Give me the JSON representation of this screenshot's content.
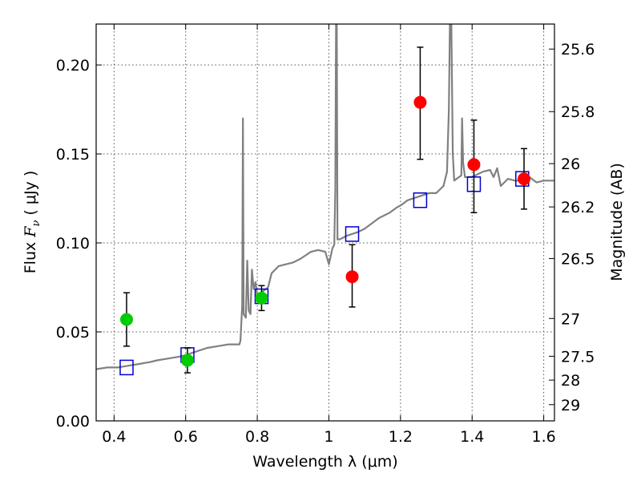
{
  "chart_data": {
    "type": "scatter",
    "xlabel": "Wavelength  λ (μm)",
    "ylabel": "Flux  F_ν  ( μJy )",
    "ylabel_parts": {
      "prefix": "Flux  ",
      "symbol": "F",
      "subscript": "ν",
      "suffix": "  ( μJy )"
    },
    "y2label": "Magnitude (AB)",
    "xlim": [
      0.35,
      1.63
    ],
    "ylim": [
      0.0,
      0.223
    ],
    "grid": true,
    "x_ticks": [
      0.4,
      0.6,
      0.8,
      1.0,
      1.2,
      1.4,
      1.6
    ],
    "x_tick_labels": [
      "0.4",
      "0.6",
      "0.8",
      "1",
      "1.2",
      "1.4",
      "1.6"
    ],
    "y_ticks": [
      0.0,
      0.05,
      0.1,
      0.15,
      0.2
    ],
    "y_tick_labels": [
      "0.00",
      "0.05",
      "0.10",
      "0.15",
      "0.20"
    ],
    "y2_ticks": [
      25.6,
      25.8,
      26,
      26.2,
      26.5,
      27,
      27.5,
      28,
      29
    ],
    "y2_tick_labels": [
      "25.6",
      "25.8",
      "26",
      "26.2",
      "26.5",
      "27",
      "27.5",
      "28",
      "29"
    ],
    "colors": {
      "sed": "#808080",
      "optical_points": "#00cc00",
      "nir_points": "#ff0000",
      "model_squares": "#0000cc",
      "error_bars": "#000000",
      "grid": "#555555"
    },
    "series": [
      {
        "kind": "line",
        "points": [
          [
            0.35,
            0.029
          ],
          [
            0.38,
            0.03
          ],
          [
            0.41,
            0.03
          ],
          [
            0.44,
            0.031
          ],
          [
            0.47,
            0.032
          ],
          [
            0.5,
            0.033
          ],
          [
            0.52,
            0.034
          ],
          [
            0.55,
            0.035
          ],
          [
            0.58,
            0.036
          ],
          [
            0.6,
            0.037
          ],
          [
            0.63,
            0.039
          ],
          [
            0.66,
            0.041
          ],
          [
            0.69,
            0.042
          ],
          [
            0.72,
            0.043
          ],
          [
            0.75,
            0.043
          ],
          [
            0.753,
            0.045
          ],
          [
            0.758,
            0.065
          ],
          [
            0.76,
            0.17
          ],
          [
            0.762,
            0.06
          ],
          [
            0.768,
            0.058
          ],
          [
            0.772,
            0.09
          ],
          [
            0.776,
            0.062
          ],
          [
            0.781,
            0.06
          ],
          [
            0.785,
            0.085
          ],
          [
            0.79,
            0.074
          ],
          [
            0.795,
            0.078
          ],
          [
            0.8,
            0.07
          ],
          [
            0.81,
            0.072
          ],
          [
            0.83,
            0.075
          ],
          [
            0.84,
            0.083
          ],
          [
            0.86,
            0.087
          ],
          [
            0.88,
            0.088
          ],
          [
            0.9,
            0.089
          ],
          [
            0.92,
            0.091
          ],
          [
            0.95,
            0.095
          ],
          [
            0.97,
            0.096
          ],
          [
            0.99,
            0.095
          ],
          [
            1.0,
            0.088
          ],
          [
            1.01,
            0.097
          ],
          [
            1.015,
            0.099
          ],
          [
            1.018,
            0.13
          ],
          [
            1.02,
            0.223
          ],
          [
            1.022,
            0.223
          ],
          [
            1.024,
            0.102
          ],
          [
            1.03,
            0.102
          ],
          [
            1.05,
            0.104
          ],
          [
            1.08,
            0.106
          ],
          [
            1.1,
            0.108
          ],
          [
            1.12,
            0.111
          ],
          [
            1.14,
            0.114
          ],
          [
            1.17,
            0.117
          ],
          [
            1.19,
            0.12
          ],
          [
            1.2,
            0.121
          ],
          [
            1.22,
            0.124
          ],
          [
            1.25,
            0.126
          ],
          [
            1.28,
            0.128
          ],
          [
            1.3,
            0.128
          ],
          [
            1.31,
            0.13
          ],
          [
            1.32,
            0.132
          ],
          [
            1.33,
            0.14
          ],
          [
            1.335,
            0.175
          ],
          [
            1.338,
            0.223
          ],
          [
            1.342,
            0.223
          ],
          [
            1.346,
            0.15
          ],
          [
            1.35,
            0.135
          ],
          [
            1.37,
            0.138
          ],
          [
            1.372,
            0.17
          ],
          [
            1.375,
            0.145
          ],
          [
            1.38,
            0.137
          ],
          [
            1.4,
            0.137
          ],
          [
            1.43,
            0.14
          ],
          [
            1.45,
            0.141
          ],
          [
            1.46,
            0.137
          ],
          [
            1.47,
            0.142
          ],
          [
            1.48,
            0.132
          ],
          [
            1.5,
            0.136
          ],
          [
            1.52,
            0.135
          ],
          [
            1.54,
            0.135
          ],
          [
            1.56,
            0.137
          ],
          [
            1.58,
            0.134
          ],
          [
            1.6,
            0.135
          ],
          [
            1.63,
            0.135
          ]
        ]
      },
      {
        "kind": "model_squares",
        "points": [
          [
            0.435,
            0.03
          ],
          [
            0.605,
            0.037
          ],
          [
            0.812,
            0.07
          ],
          [
            1.065,
            0.105
          ],
          [
            1.255,
            0.124
          ],
          [
            1.405,
            0.133
          ],
          [
            1.54,
            0.136
          ]
        ]
      },
      {
        "kind": "optical_points",
        "points": [
          {
            "x": 0.435,
            "y": 0.057,
            "err_lo": 0.042,
            "err_hi": 0.072
          },
          {
            "x": 0.605,
            "y": 0.034,
            "err_lo": 0.027,
            "err_hi": 0.041
          },
          {
            "x": 0.812,
            "y": 0.069,
            "err_lo": 0.062,
            "err_hi": 0.076
          }
        ]
      },
      {
        "kind": "nir_points",
        "points": [
          {
            "x": 1.065,
            "y": 0.081,
            "err_lo": 0.064,
            "err_hi": 0.099
          },
          {
            "x": 1.255,
            "y": 0.179,
            "err_lo": 0.147,
            "err_hi": 0.21
          },
          {
            "x": 1.405,
            "y": 0.144,
            "err_lo": 0.117,
            "err_hi": 0.169
          },
          {
            "x": 1.545,
            "y": 0.136,
            "err_lo": 0.119,
            "err_hi": 0.153
          }
        ]
      }
    ]
  }
}
